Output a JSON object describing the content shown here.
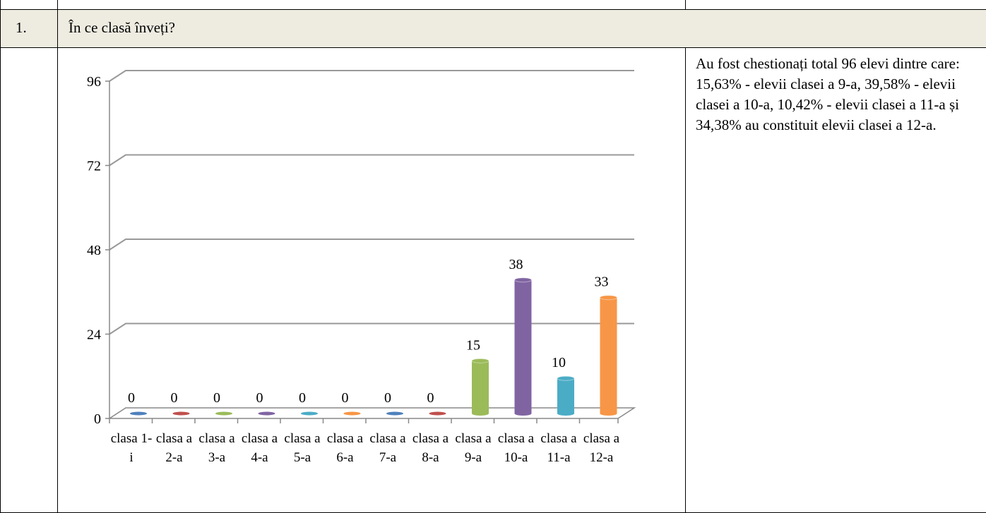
{
  "row": {
    "number": "1.",
    "question": "În ce clasă înveți?"
  },
  "description": "Au fost chestionați total 96 elevi dintre care: 15,63% - elevii clasei a 9-a, 39,58% - elevii clasei a 10-a, 10,42% - elevii clasei a 11-a și 34,38% au constituit elevii clasei a 12-a.",
  "chart_data": {
    "type": "bar",
    "categories": [
      "clasa 1-i",
      "clasa a 2-a",
      "clasa a 3-a",
      "clasa a 4-a",
      "clasa a 5-a",
      "clasa a 6-a",
      "clasa a 7-a",
      "clasa a 8-a",
      "clasa a 9-a",
      "clasa a 10-a",
      "clasa a 11-a",
      "clasa a 12-a"
    ],
    "values": [
      0,
      0,
      0,
      0,
      0,
      0,
      0,
      0,
      15,
      38,
      10,
      33
    ],
    "colors": [
      "#4f81bd",
      "#c0504d",
      "#9bbb59",
      "#8064a2",
      "#4bacc6",
      "#f79646",
      "#4f81bd",
      "#c0504d",
      "#9bbb59",
      "#8064a2",
      "#4bacc6",
      "#f79646"
    ],
    "ylim": [
      0,
      96
    ],
    "yticks": [
      0,
      24,
      48,
      72,
      96
    ],
    "grid": true
  }
}
